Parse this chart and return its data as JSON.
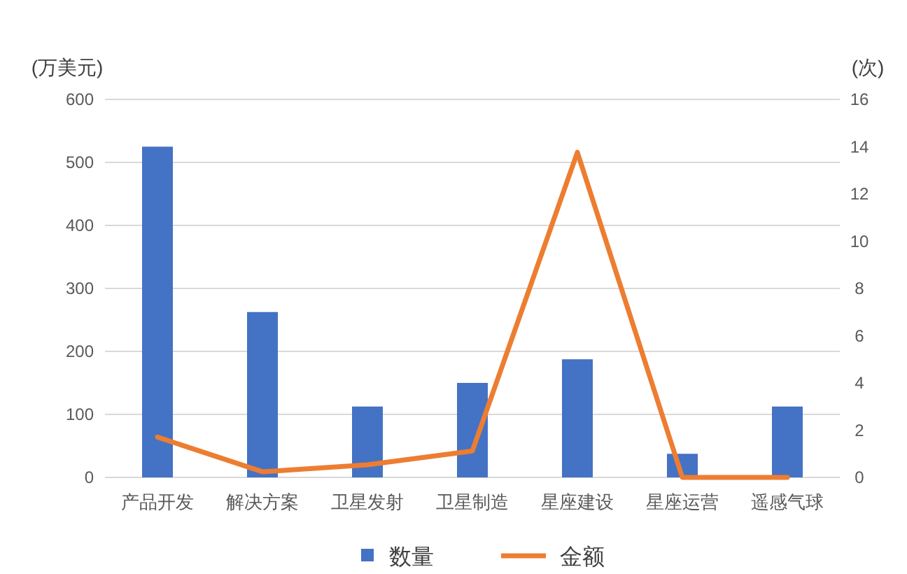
{
  "chart_data": {
    "type": "bar",
    "categories": [
      "产品开发",
      "解决方案",
      "卫星发射",
      "卫星制造",
      "星座建设",
      "星座运营",
      "遥感气球"
    ],
    "ylabel": "(万美元)",
    "y2label": "(次)",
    "series": [
      {
        "name": "数量",
        "axis": "y2",
        "color": "#4472c4",
        "values": [
          14,
          7,
          3,
          4,
          5,
          1,
          3
        ]
      },
      {
        "name": "金额",
        "type": "line",
        "axis": "y",
        "color": "#ed7d31",
        "values": [
          64,
          9,
          20,
          42,
          516,
          0,
          0
        ]
      }
    ],
    "ylim": [
      0,
      600
    ],
    "yticks": [
      0,
      100,
      200,
      300,
      400,
      500,
      600
    ],
    "y2lim": [
      0,
      16
    ],
    "y2ticks": [
      0,
      2,
      4,
      6,
      8,
      10,
      12,
      14,
      16
    ],
    "grid": "y",
    "legend": "bottom",
    "marker": "none",
    "line_style": "solid"
  }
}
